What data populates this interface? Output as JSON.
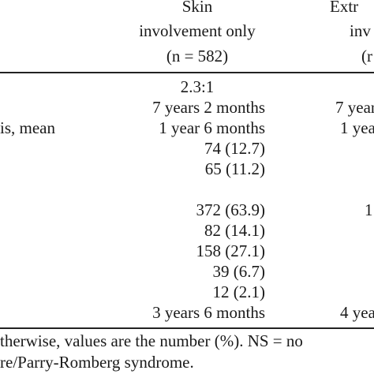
{
  "header": {
    "col2_line1": "Skin",
    "col2_line2": "involvement only",
    "col2_line3": "(n = 582)",
    "col3_line1": "Extr",
    "col3_line2": "inv",
    "col3_line3": "(r"
  },
  "rows": {
    "r1": {
      "label": "",
      "col2": "2.3:1",
      "col3": ""
    },
    "r2": {
      "label": "",
      "col2": "7 years 2 months",
      "col3": "7 year"
    },
    "r3": {
      "label": "is, mean",
      "col2": "1 year 6 months",
      "col3": "1 yea"
    },
    "r4": {
      "label": "",
      "col2": "74 (12.7)",
      "col3": ""
    },
    "r5": {
      "label": "",
      "col2": "65 (11.2)",
      "col3": ""
    },
    "r6": {
      "label": "",
      "col2": "372 (63.9)",
      "col3": "1"
    },
    "r7": {
      "label": "",
      "col2": "82 (14.1)",
      "col3": ""
    },
    "r8": {
      "label": "",
      "col2": "158 (27.1)",
      "col3": ""
    },
    "r9": {
      "label": "",
      "col2": "39 (6.7)",
      "col3": ""
    },
    "r10": {
      "label": "",
      "col2": "12 (2.1)",
      "col3": ""
    },
    "r11": {
      "label": "",
      "col2": "3 years 6 months",
      "col3": "4 yea"
    }
  },
  "footnote": {
    "line1": "therwise, values are the number (%). NS = no",
    "line2": "re/Parry-Romberg syndrome."
  }
}
